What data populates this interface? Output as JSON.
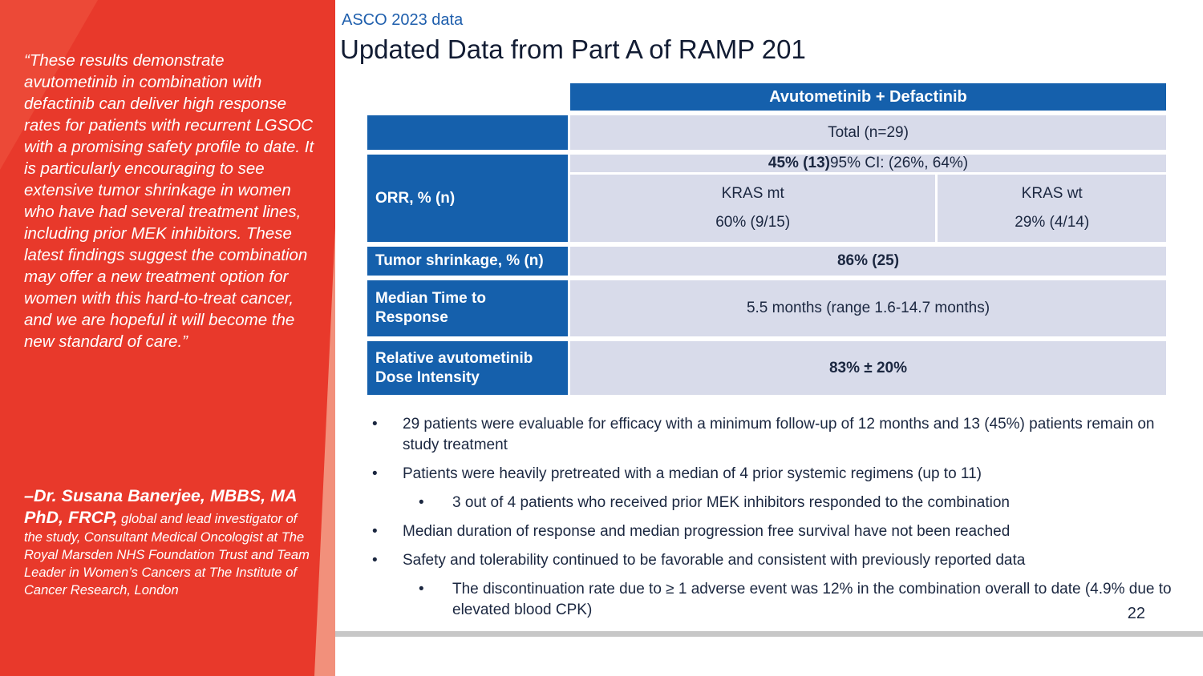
{
  "sidebar": {
    "quote": "“These results demonstrate avutometinib in combination with defactinib can deliver high response rates for patients with recurrent LGSOC with a promising safety profile to date. It is particularly encouraging to see extensive tumor shrinkage in women who have had several treatment lines, including prior MEK inhibitors. These latest findings suggest the combination may offer a new treatment option for women with this hard-to-treat cancer, and we are hopeful it will become the new standard of care.”",
    "attribution_name": "–Dr. Susana Banerjee, MBBS, MA PhD, FRCP,",
    "attribution_role": " global and lead investigator of the study, Consultant Medical Oncologist at The Royal Marsden NHS Foundation Trust and Team Leader in Women’s Cancers at The Institute of Cancer Research, London"
  },
  "header": {
    "kicker": "ASCO 2023 data",
    "title": "Updated Data from Part A of RAMP 201"
  },
  "table": {
    "column_header": "Avutometinib + Defactinib",
    "total": "Total (n=29)",
    "orr": {
      "label": "ORR, % (n)",
      "overall_bold": "45% (13)",
      "overall_rest": " 95% CI: (26%, 64%)",
      "kras_mt_label": "KRAS mt",
      "kras_mt_value": "60% (9/15)",
      "kras_wt_label": "KRAS wt",
      "kras_wt_value": "29% (4/14)"
    },
    "tumor_label": "Tumor shrinkage, % (n)",
    "tumor_value": "86% (25)",
    "mtr_label": "Median Time to Response",
    "mtr_value": "5.5 months (range 1.6-14.7 months)",
    "dose_label": "Relative avutometinib Dose Intensity",
    "dose_value": "83% ± 20%"
  },
  "bullets": [
    {
      "level": 1,
      "text": "29 patients were evaluable for efficacy with a minimum follow-up of 12 months and 13 (45%) patients remain on study treatment"
    },
    {
      "level": 1,
      "text": "Patients were heavily pretreated with a median of 4 prior systemic regimens (up to 11)"
    },
    {
      "level": 2,
      "text": "3 out of 4 patients who received prior MEK inhibitors responded to the combination"
    },
    {
      "level": 1,
      "text": "Median duration of response and median progression free survival have not been reached"
    },
    {
      "level": 1,
      "text": "Safety and tolerability continued to be favorable and consistent with previously reported data"
    },
    {
      "level": 2,
      "text": "The discontinuation rate due to ≥ 1 adverse event was 12% in the combination overall to date (4.9% due to elevated blood CPK)"
    }
  ],
  "page_number": "22",
  "colors": {
    "sidebar_red": "#E8392B",
    "sidebar_salmon": "#F2907B",
    "table_blue": "#1560AC",
    "cell_lavender": "#D8DBEA",
    "title_navy": "#121C33",
    "kicker_blue": "#1F5FAD",
    "text_navy": "#1B2740",
    "footer_gray": "#C7C7C7"
  }
}
